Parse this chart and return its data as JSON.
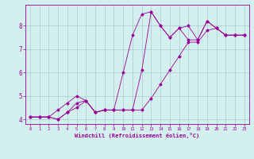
{
  "xlabel": "Windchill (Refroidissement éolien,°C)",
  "background_color": "#d4f0ee",
  "grid_color": "#aacccc",
  "line_color": "#990099",
  "xlim": [
    -0.5,
    23.5
  ],
  "ylim": [
    3.8,
    8.9
  ],
  "xticks": [
    0,
    1,
    2,
    3,
    4,
    5,
    6,
    7,
    8,
    9,
    10,
    11,
    12,
    13,
    14,
    15,
    16,
    17,
    18,
    19,
    20,
    21,
    22,
    23
  ],
  "yticks": [
    4,
    5,
    6,
    7,
    8
  ],
  "series": [
    [
      4.1,
      4.1,
      4.1,
      4.0,
      4.3,
      4.7,
      4.8,
      4.3,
      4.4,
      4.4,
      6.0,
      7.6,
      8.5,
      8.6,
      8.0,
      7.5,
      7.9,
      8.0,
      7.4,
      8.2,
      7.9,
      7.6,
      7.6,
      7.6
    ],
    [
      4.1,
      4.1,
      4.1,
      4.4,
      4.7,
      5.0,
      4.8,
      4.3,
      4.4,
      4.4,
      4.4,
      4.4,
      6.1,
      8.6,
      8.0,
      7.5,
      7.9,
      7.4,
      7.4,
      8.2,
      7.9,
      7.6,
      7.6,
      7.6
    ],
    [
      4.1,
      4.1,
      4.1,
      4.0,
      4.3,
      4.5,
      4.8,
      4.3,
      4.4,
      4.4,
      4.4,
      4.4,
      4.4,
      4.9,
      5.5,
      6.1,
      6.7,
      7.3,
      7.3,
      7.8,
      7.9,
      7.6,
      7.6,
      7.6
    ]
  ]
}
